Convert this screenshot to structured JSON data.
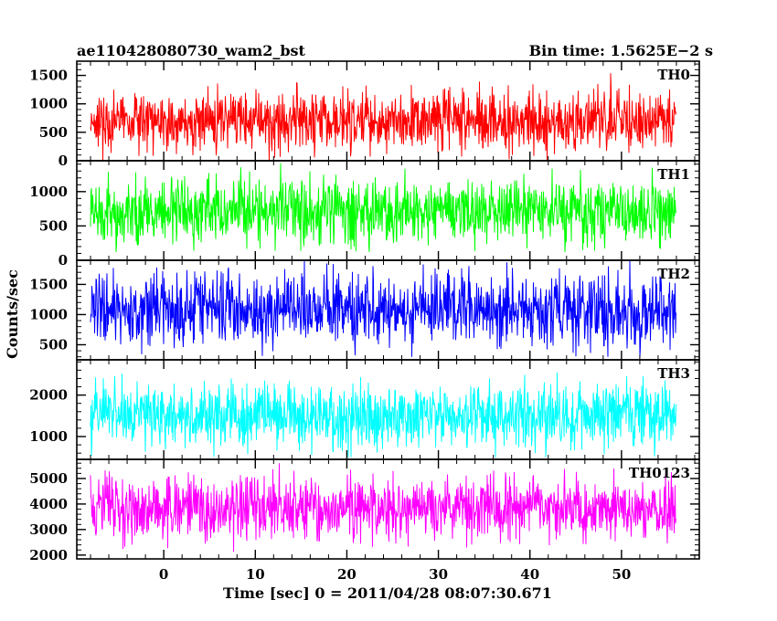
{
  "header": {
    "title": "ae110428080730_wam2_bst",
    "bin_time": "Bin time: 1.5625E−2 s"
  },
  "axes": {
    "xlabel": "Time [sec] 0 = 2011/04/28 08:07:30.671",
    "ylabel": "Counts/sec"
  },
  "chart_data": {
    "type": "line",
    "xlabel": "Time [sec] 0 = 2011/04/28 08:07:30.671",
    "ylabel": "Counts/sec",
    "xlim": [
      -9.5,
      58.5
    ],
    "x_data_range": [
      -8,
      56
    ],
    "x_ticks": [
      0,
      10,
      20,
      30,
      40,
      50
    ],
    "x_tick_labels": [
      "0",
      "10",
      "20",
      "30",
      "40",
      "50"
    ],
    "bin_time_s": 0.015625,
    "panels": [
      {
        "name": "TH0",
        "color": "#ff0000",
        "ylim": [
          0,
          1750
        ],
        "y_ticks": [
          0,
          500,
          1000,
          1500
        ],
        "y_tick_labels": [
          "0",
          "500",
          "1000",
          "1500"
        ],
        "mean": 700,
        "spread": 380,
        "min": 0,
        "max": 1750
      },
      {
        "name": "TH1",
        "color": "#00ff00",
        "ylim": [
          0,
          1450
        ],
        "y_ticks": [
          0,
          500,
          1000
        ],
        "y_tick_labels": [
          "0",
          "500",
          "1000"
        ],
        "mean": 720,
        "spread": 340,
        "min": 120,
        "max": 1450
      },
      {
        "name": "TH2",
        "color": "#0000ff",
        "ylim": [
          250,
          1900
        ],
        "y_ticks": [
          500,
          1000,
          1500
        ],
        "y_tick_labels": [
          "500",
          "1000",
          "1500"
        ],
        "mean": 1080,
        "spread": 430,
        "min": 300,
        "max": 1900
      },
      {
        "name": "TH3",
        "color": "#00ffff",
        "ylim": [
          450,
          2850
        ],
        "y_ticks": [
          1000,
          2000
        ],
        "y_tick_labels": [
          "1000",
          "2000"
        ],
        "mean": 1500,
        "spread": 560,
        "min": 500,
        "max": 2850
      },
      {
        "name": "TH0123",
        "color": "#ff00ff",
        "ylim": [
          1850,
          5750
        ],
        "y_ticks": [
          2000,
          3000,
          4000,
          5000
        ],
        "y_tick_labels": [
          "2000",
          "3000",
          "4000",
          "5000"
        ],
        "mean": 3820,
        "spread": 900,
        "min": 1900,
        "max": 5750
      }
    ]
  }
}
